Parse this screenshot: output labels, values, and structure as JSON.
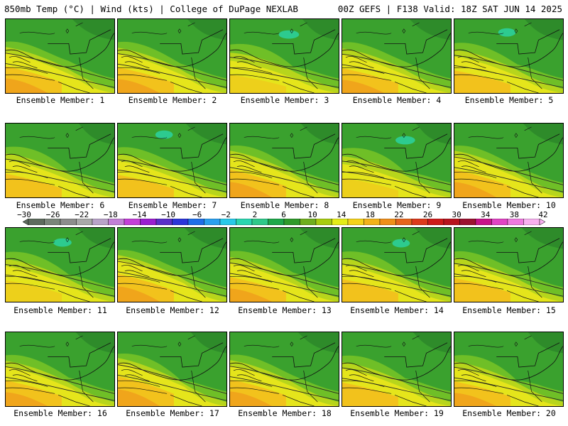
{
  "header": {
    "left": "850mb Temp (°C) | Wind (kts) | College of DuPage NEXLAB",
    "right": "00Z GEFS | F138 Valid: 18Z SAT JUN 14 2025"
  },
  "members": [
    {
      "label": "Ensemble Member: 1",
      "warmth": 0.75
    },
    {
      "label": "Ensemble Member: 2",
      "warmth": 0.7
    },
    {
      "label": "Ensemble Member: 3",
      "warmth": 0.35
    },
    {
      "label": "Ensemble Member: 4",
      "warmth": 0.65
    },
    {
      "label": "Ensemble Member: 5",
      "warmth": 0.55
    },
    {
      "label": "Ensemble Member: 6",
      "warmth": 0.6
    },
    {
      "label": "Ensemble Member: 7",
      "warmth": 0.55
    },
    {
      "label": "Ensemble Member: 8",
      "warmth": 0.8
    },
    {
      "label": "Ensemble Member: 9",
      "warmth": 0.4
    },
    {
      "label": "Ensemble Member: 10",
      "warmth": 0.8
    },
    {
      "label": "Ensemble Member: 11",
      "warmth": 0.5
    },
    {
      "label": "Ensemble Member: 12",
      "warmth": 0.8
    },
    {
      "label": "Ensemble Member: 13",
      "warmth": 0.65
    },
    {
      "label": "Ensemble Member: 14",
      "warmth": 0.55
    },
    {
      "label": "Ensemble Member: 15",
      "warmth": 0.6
    },
    {
      "label": "Ensemble Member: 16",
      "warmth": 0.7
    },
    {
      "label": "Ensemble Member: 17",
      "warmth": 0.9
    },
    {
      "label": "Ensemble Member: 18",
      "warmth": 0.75
    },
    {
      "label": "Ensemble Member: 19",
      "warmth": 0.6
    },
    {
      "label": "Ensemble Member: 20",
      "warmth": 0.65
    }
  ],
  "colorbar": {
    "labels": [
      "−30",
      "−26",
      "−22",
      "−18",
      "−14",
      "−10",
      "−6",
      "−2",
      "2",
      "6",
      "10",
      "14",
      "18",
      "22",
      "26",
      "30",
      "34",
      "38",
      "42"
    ],
    "colors": [
      "#5e6b5e",
      "#7a857a",
      "#8d8d8d",
      "#a9a9a9",
      "#b9a3c9",
      "#c27fd6",
      "#c43fd8",
      "#9a1fd0",
      "#5a2fc9",
      "#2c35d9",
      "#1f6ee8",
      "#2aa0ef",
      "#29c9e8",
      "#2ad6b0",
      "#2fc98a",
      "#1ea84a",
      "#2f9a2a",
      "#6fae1e",
      "#a8cc10",
      "#e4ec18",
      "#f5d21a",
      "#f2b21a",
      "#ef8f1a",
      "#e6641c",
      "#dc3a1c",
      "#cf1a1a",
      "#b8141e",
      "#9c1230",
      "#c8138a",
      "#e044c4",
      "#f07ae0",
      "#f8b0f0"
    ]
  },
  "palette": {
    "deep_green": "#2e8b2a",
    "green": "#3aa12e",
    "light_green": "#6fbf27",
    "yellow_green": "#b7d51c",
    "yellow": "#e5e51b",
    "gold": "#f2c21c",
    "orange": "#f0a51b",
    "teal": "#2ccf9a",
    "cyan": "#33e0d0"
  }
}
